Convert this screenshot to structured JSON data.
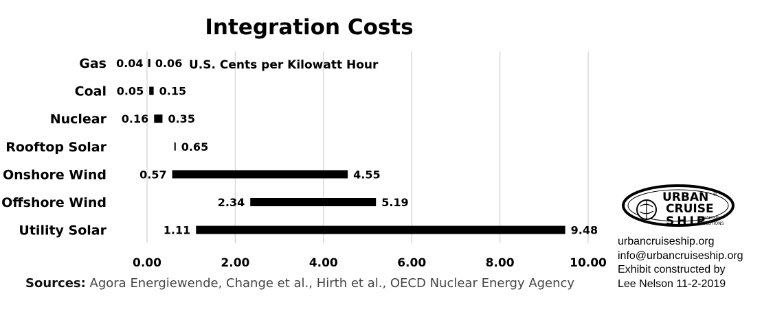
{
  "chart_data": {
    "type": "bar",
    "subtype": "floating-range-horizontal",
    "title": "Integration Costs",
    "unit_label": "U.S. Cents per Kilowatt Hour",
    "categories": [
      "Gas",
      "Coal",
      "Nuclear",
      "Rooftop Solar",
      "Onshore Wind",
      "Offshore Wind",
      "Utility Solar"
    ],
    "series": [
      {
        "low": 0.04,
        "high": 0.06
      },
      {
        "low": 0.05,
        "high": 0.15
      },
      {
        "low": 0.16,
        "high": 0.35
      },
      {
        "low": null,
        "high": 0.65
      },
      {
        "low": 0.57,
        "high": 4.55
      },
      {
        "low": 2.34,
        "high": 5.19
      },
      {
        "low": 1.11,
        "high": 9.48
      }
    ],
    "low_labels": [
      "0.04",
      "0.05",
      "0.16",
      "",
      "0.57",
      "2.34",
      "1.11"
    ],
    "high_labels": [
      "0.06",
      "0.15",
      "0.35",
      "0.65",
      "4.55",
      "5.19",
      "9.48"
    ],
    "xlim": [
      0,
      10
    ],
    "xticks": [
      "0.00",
      "2.00",
      "4.00",
      "6.00",
      "8.00",
      "10.00"
    ],
    "grid": true,
    "bar_color": "#000000",
    "grid_color": "#d4d4d4"
  },
  "sources": {
    "lead": "Sources:",
    "text": " Agora Energiewende, Change et al., Hirth et al., OECD Nuclear Energy Agency"
  },
  "logo": {
    "line1": "URBAN",
    "line2": "CRUISE",
    "line3": "SHIP",
    "sub1": "ANALYSIS",
    "sub2": "SOLUTIONS",
    "mark": "®"
  },
  "credits": {
    "website": "urbancruiseship.org",
    "email": "info@urbancruiseship.org",
    "line3": "Exhibit constructed by",
    "line4": "Lee Nelson 11-2-2019"
  }
}
